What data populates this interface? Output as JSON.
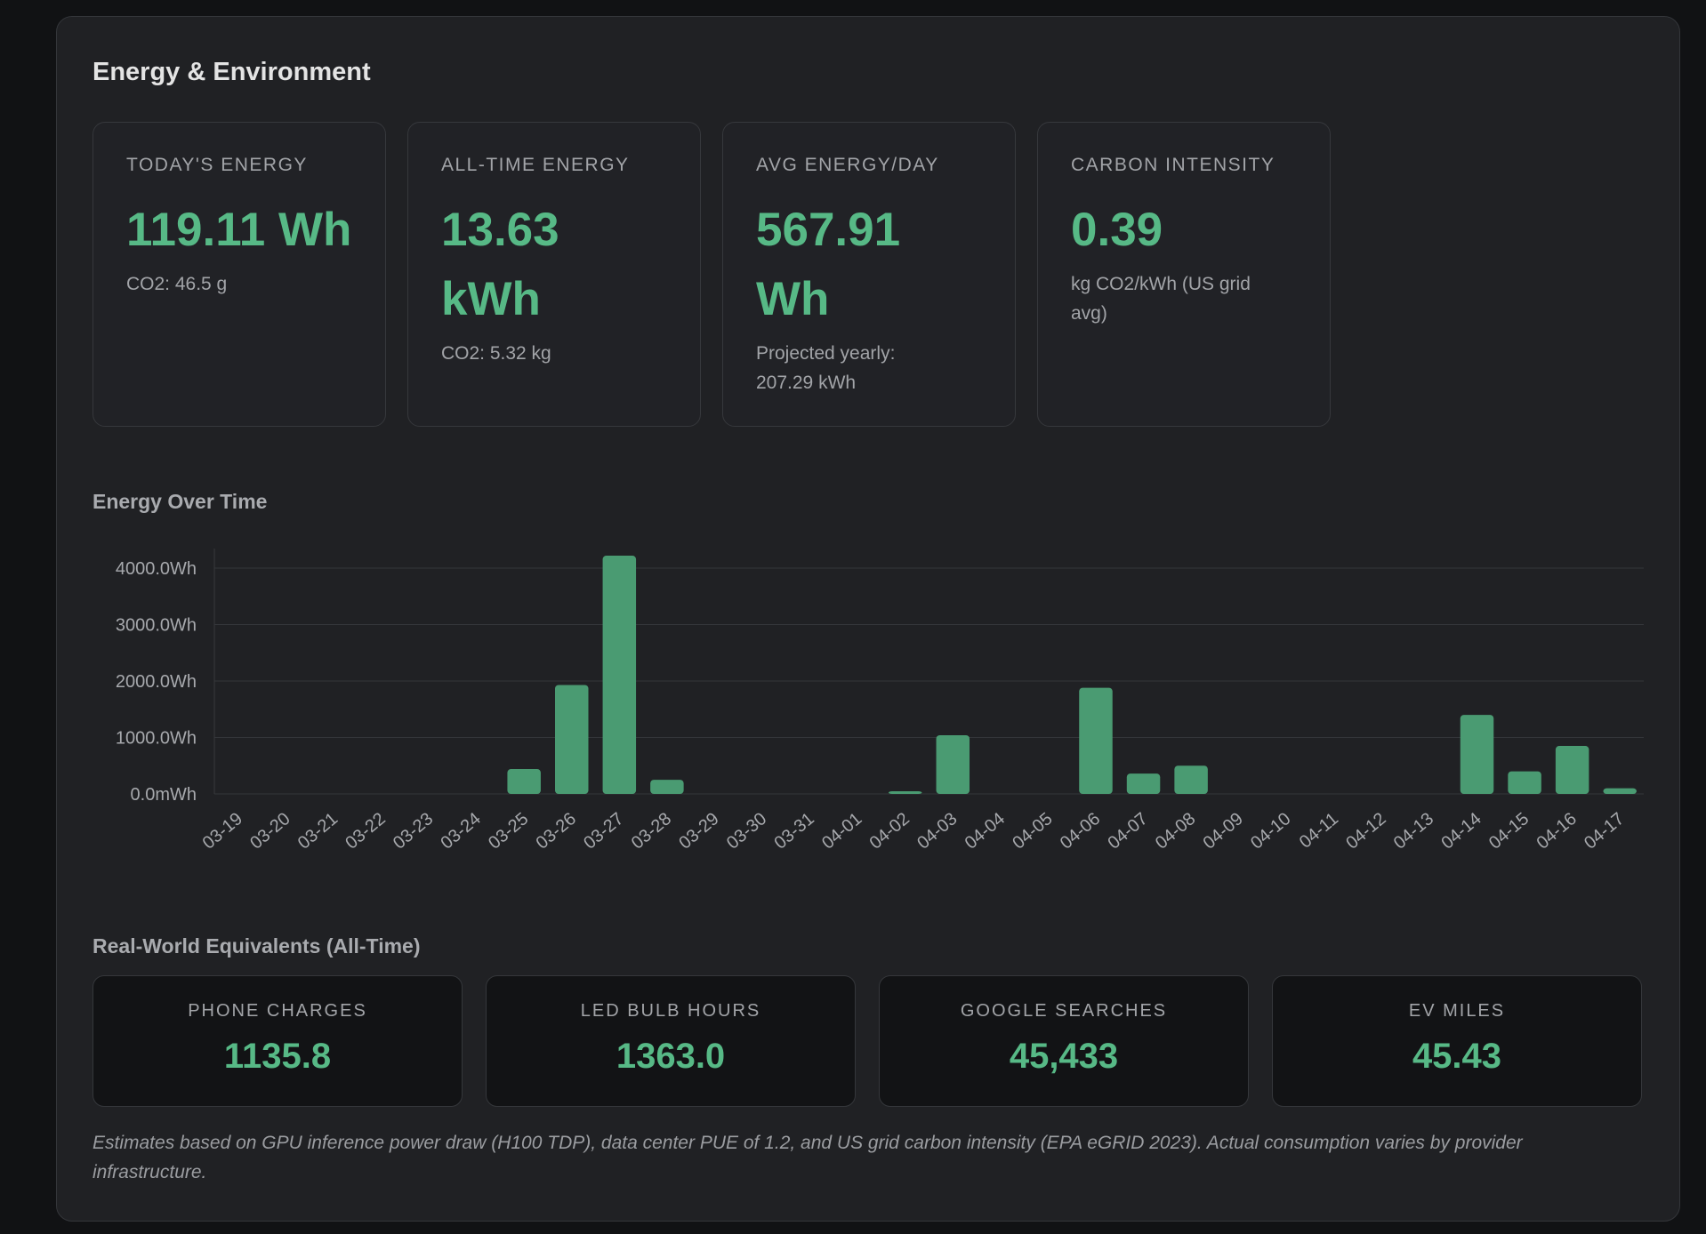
{
  "panel": {
    "title": "Energy & Environment"
  },
  "stats": [
    {
      "label": "TODAY'S ENERGY",
      "value": "119.11 Wh",
      "sub": "CO2: 46.5 g"
    },
    {
      "label": "ALL-TIME ENERGY",
      "value": "13.63 kWh",
      "sub": "CO2: 5.32 kg"
    },
    {
      "label": "AVG ENERGY/DAY",
      "value": "567.91 Wh",
      "sub": "Projected yearly: 207.29 kWh"
    },
    {
      "label": "CARBON INTENSITY",
      "value": "0.39",
      "sub": "kg CO2/kWh (US grid avg)"
    }
  ],
  "chart_section": {
    "title": "Energy Over Time"
  },
  "chart_data": {
    "type": "bar",
    "title": "Energy Over Time",
    "categories": [
      "03-19",
      "03-20",
      "03-21",
      "03-22",
      "03-23",
      "03-24",
      "03-25",
      "03-26",
      "03-27",
      "03-28",
      "03-29",
      "03-30",
      "03-31",
      "04-01",
      "04-02",
      "04-03",
      "04-04",
      "04-05",
      "04-06",
      "04-07",
      "04-08",
      "04-09",
      "04-10",
      "04-11",
      "04-12",
      "04-13",
      "04-14",
      "04-15",
      "04-16",
      "04-17"
    ],
    "values": [
      0,
      0,
      0,
      0,
      0,
      0,
      440,
      1930,
      4220,
      250,
      0,
      0,
      0,
      0,
      40,
      1040,
      0,
      0,
      1880,
      360,
      500,
      0,
      0,
      0,
      0,
      0,
      1400,
      400,
      850,
      100
    ],
    "yticks": [
      "0.0mWh",
      "1000.0Wh",
      "2000.0Wh",
      "3000.0Wh",
      "4000.0Wh"
    ],
    "ytick_values": [
      0,
      1000,
      2000,
      3000,
      4000
    ],
    "ylim": [
      0,
      4500
    ],
    "grid": true,
    "bar_color": "#4a9b72"
  },
  "equivalents_section": {
    "title": "Real-World Equivalents (All-Time)"
  },
  "equivalents": [
    {
      "label": "PHONE CHARGES",
      "value": "1135.8"
    },
    {
      "label": "LED BULB HOURS",
      "value": "1363.0"
    },
    {
      "label": "GOOGLE SEARCHES",
      "value": "45,433"
    },
    {
      "label": "EV MILES",
      "value": "45.43"
    }
  ],
  "footnote": "Estimates based on GPU inference power draw (H100 TDP), data center PUE of 1.2, and US grid carbon intensity (EPA eGRID 2023). Actual consumption varies by provider infrastructure."
}
